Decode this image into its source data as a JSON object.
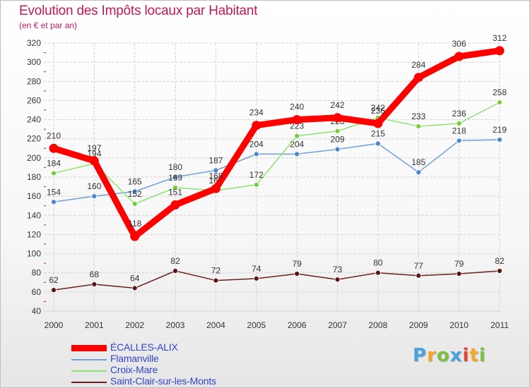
{
  "chart_data": {
    "type": "line",
    "title": "Evolution des Impôts locaux par Habitant",
    "subtitle": "(en € et par an)",
    "categories": [
      "2000",
      "2001",
      "2002",
      "2003",
      "2004",
      "2005",
      "2006",
      "2007",
      "2008",
      "2009",
      "2010",
      "2011"
    ],
    "ylim": [
      40,
      320
    ],
    "yticks": [
      40,
      60,
      80,
      100,
      120,
      140,
      160,
      180,
      200,
      220,
      240,
      260,
      280,
      300,
      320
    ],
    "grid": true,
    "legend_position": "bottom-left",
    "series": [
      {
        "name": "ÉCALLES-ALIX",
        "color": "#ff0000",
        "marker_color": "#ff0000",
        "emphasis": true,
        "values": [
          210,
          197,
          118,
          151,
          168,
          234,
          240,
          242,
          236,
          284,
          306,
          312
        ]
      },
      {
        "name": "Flamanville",
        "color": "#6fa0d8",
        "marker_color": "#4a86c8",
        "emphasis": false,
        "values": [
          154,
          160,
          165,
          180,
          187,
          204,
          204,
          209,
          215,
          185,
          218,
          219
        ]
      },
      {
        "name": "Croix-Mare",
        "color": "#90e070",
        "marker_color": "#78cc3c",
        "emphasis": false,
        "values": [
          184,
          194,
          152,
          169,
          166,
          172,
          223,
          228,
          242,
          233,
          236,
          258
        ]
      },
      {
        "name": "Saint-Clair-sur-les-Monts",
        "color": "#6b2020",
        "marker_color": "#5a1414",
        "emphasis": false,
        "values": [
          62,
          68,
          64,
          82,
          72,
          74,
          79,
          73,
          80,
          77,
          79,
          82
        ]
      }
    ]
  },
  "branding": {
    "logo_letters": [
      "P",
      "r",
      "o",
      "x",
      "i",
      "t",
      "i"
    ],
    "logo_colors": [
      "#4aa3df",
      "#f5a623",
      "#7ac143",
      "#4aa3df",
      "#e8452c",
      "#f5a623",
      "#7ac143"
    ]
  },
  "colors": {
    "title": "#c2185b",
    "axis_text": "#333333",
    "grid": "#d4d4d4",
    "tick_mark": "#c2185b",
    "legend_text": "#3344cc"
  }
}
